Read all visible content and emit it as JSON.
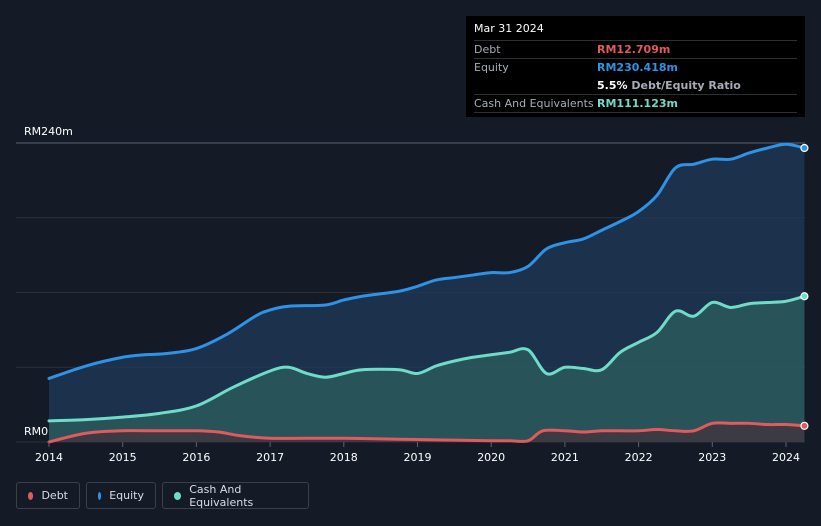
{
  "tooltip": {
    "date": "Mar 31 2024",
    "debt_label": "Debt",
    "debt_value": "RM12.709m",
    "equity_label": "Equity",
    "equity_value": "RM230.418m",
    "ratio_value": "5.5%",
    "ratio_label": "Debt/Equity Ratio",
    "cash_label": "Cash And Equivalents",
    "cash_value": "RM111.123m"
  },
  "legend": [
    {
      "label": "Debt",
      "color": "#e05a5e"
    },
    {
      "label": "Equity",
      "color": "#2e93e6"
    },
    {
      "label": "Cash And Equivalents",
      "color": "#6fdcc9"
    }
  ],
  "chart_data": {
    "type": "area",
    "title": "",
    "xlabel": "",
    "ylabel": "",
    "ylim": [
      0,
      240
    ],
    "y_tick_labels": [
      "RM0",
      "RM240m"
    ],
    "x_tick_labels": [
      "2014",
      "2015",
      "2016",
      "2017",
      "2018",
      "2019",
      "2020",
      "2021",
      "2022",
      "2023",
      "2024"
    ],
    "xlim": [
      2014,
      2024.25
    ],
    "series": [
      {
        "name": "Equity",
        "color": "#2e93e6",
        "x": [
          2014.0,
          2014.5,
          2015.0,
          2015.3,
          2015.6,
          2016.0,
          2016.4,
          2016.8,
          2017.0,
          2017.25,
          2017.75,
          2018.0,
          2018.25,
          2018.75,
          2019.0,
          2019.25,
          2019.5,
          2019.75,
          2020.0,
          2020.25,
          2020.5,
          2020.75,
          2021.0,
          2021.25,
          2021.5,
          2021.75,
          2022.0,
          2022.25,
          2022.5,
          2022.75,
          2023.0,
          2023.25,
          2023.5,
          2023.75,
          2024.0,
          2024.25
        ],
        "values": [
          51,
          61,
          68,
          70,
          71,
          75,
          86,
          101,
          106,
          109,
          110,
          114,
          117,
          121,
          125,
          130,
          132,
          134,
          136,
          136,
          141,
          155,
          160,
          163,
          170,
          177,
          185,
          198,
          220,
          223,
          227,
          227,
          232,
          236,
          239,
          236
        ]
      },
      {
        "name": "Cash And Equivalents",
        "color": "#6fdcc9",
        "x": [
          2014.0,
          2014.5,
          2015.0,
          2015.5,
          2016.0,
          2016.5,
          2017.0,
          2017.25,
          2017.5,
          2017.75,
          2018.0,
          2018.25,
          2018.75,
          2019.0,
          2019.25,
          2019.5,
          2019.75,
          2020.0,
          2020.25,
          2020.5,
          2020.75,
          2021.0,
          2021.25,
          2021.5,
          2021.75,
          2022.0,
          2022.25,
          2022.5,
          2022.75,
          2023.0,
          2023.25,
          2023.5,
          2023.75,
          2024.0,
          2024.25
        ],
        "values": [
          17,
          18,
          20,
          23,
          29,
          44,
          57,
          60,
          55,
          52,
          55,
          58,
          58,
          55,
          61,
          65,
          68,
          70,
          72,
          74,
          55,
          60,
          59,
          58,
          72,
          80,
          88,
          105,
          101,
          112,
          108,
          111,
          112,
          113,
          117
        ]
      },
      {
        "name": "Debt",
        "color": "#e05a5e",
        "x": [
          2014.0,
          2014.5,
          2015.0,
          2015.5,
          2016.0,
          2016.3,
          2016.6,
          2017.0,
          2017.5,
          2018.0,
          2018.5,
          2019.0,
          2019.5,
          2020.0,
          2020.25,
          2020.5,
          2020.7,
          2021.0,
          2021.25,
          2021.5,
          2021.75,
          2022.0,
          2022.25,
          2022.5,
          2022.75,
          2023.0,
          2023.25,
          2023.5,
          2023.75,
          2024.0,
          2024.25
        ],
        "values": [
          0,
          7,
          9,
          9,
          9,
          8,
          5,
          3,
          3,
          3,
          2.5,
          2,
          1.5,
          1,
          1,
          1,
          9,
          9,
          8,
          9,
          9,
          9,
          10,
          9,
          9,
          15,
          15,
          15,
          14,
          14,
          13
        ]
      }
    ]
  }
}
